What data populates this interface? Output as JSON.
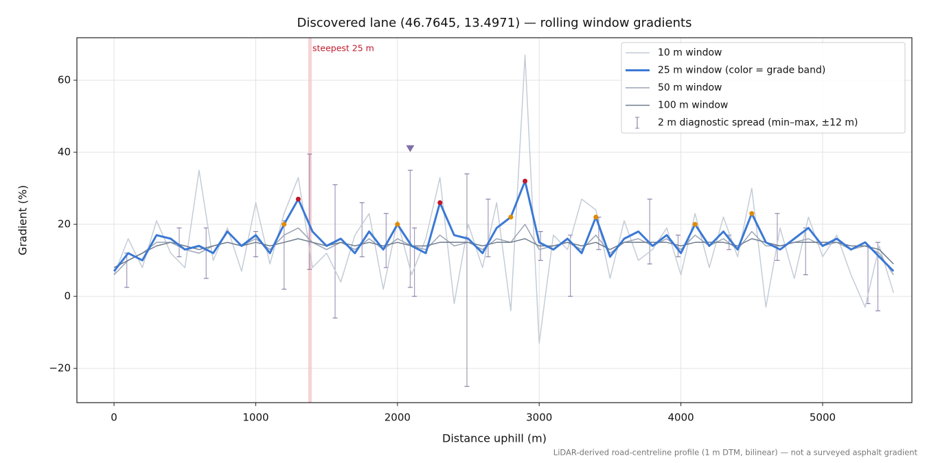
{
  "chart_data": {
    "type": "line",
    "title": "Discovered lane (46.7645, 13.4971) — rolling window gradients",
    "x_label": "Distance uphill (m)",
    "y_label": "Gradient (%)",
    "footnote": "LiDAR-derived road-centreline profile (1 m DTM, bilinear) — not a surveyed asphalt gradient",
    "xlim": [
      -262,
      5630
    ],
    "ylim": [
      -29.5,
      71.8
    ],
    "xticks": [
      0,
      1000,
      2000,
      3000,
      4000,
      5000
    ],
    "yticks": [
      {
        "value": -20,
        "label": "−20"
      },
      0,
      20,
      40,
      60
    ],
    "grid": true,
    "legend": "upper right",
    "x": [
      0,
      100,
      200,
      300,
      400,
      500,
      600,
      700,
      800,
      900,
      1000,
      1100,
      1200,
      1300,
      1400,
      1500,
      1600,
      1700,
      1800,
      1900,
      2000,
      2100,
      2200,
      2300,
      2400,
      2500,
      2600,
      2700,
      2800,
      2900,
      3000,
      3100,
      3200,
      3300,
      3400,
      3500,
      3600,
      3700,
      3800,
      3900,
      4000,
      4100,
      4200,
      4300,
      4400,
      4500,
      4600,
      4700,
      4800,
      4900,
      5000,
      5100,
      5200,
      5300,
      5400,
      5500
    ],
    "series": [
      {
        "name": "10 m window",
        "color": "#c4ccd6",
        "width": 1.5,
        "values": [
          6,
          16,
          8,
          21,
          12,
          8,
          35,
          10,
          19,
          7,
          26,
          9,
          23,
          33,
          8,
          12,
          4,
          17,
          23,
          2,
          21,
          6,
          16,
          33,
          -2,
          20,
          8,
          26,
          -4,
          67,
          -13,
          17,
          13,
          27,
          24,
          5,
          21,
          10,
          13,
          19,
          6,
          23,
          8,
          22,
          11,
          30,
          -3,
          19,
          5,
          22,
          11,
          17,
          6,
          -3,
          14,
          1
        ]
      },
      {
        "name": "25 m window (color = grade band)",
        "color": "#3a78d4",
        "width": 3,
        "values": [
          7,
          12,
          10,
          17,
          16,
          13,
          14,
          12,
          18,
          14,
          17,
          12,
          20,
          27,
          18,
          14,
          16,
          12,
          18,
          13,
          20,
          14,
          12,
          26,
          17,
          16,
          12,
          19,
          22,
          32,
          15,
          13,
          16,
          12,
          22,
          11,
          16,
          18,
          14,
          17,
          12,
          20,
          14,
          18,
          13,
          23,
          15,
          13,
          16,
          19,
          14,
          16,
          13,
          15,
          11,
          7
        ]
      },
      {
        "name": "50 m window",
        "color": "#9aa4b4",
        "width": 1.5,
        "values": [
          6,
          10,
          12,
          15,
          15,
          13,
          12,
          14,
          15,
          14,
          16,
          13,
          17,
          19,
          15,
          13,
          15,
          13,
          16,
          13,
          16,
          14,
          13,
          17,
          14,
          15,
          13,
          16,
          15,
          20,
          13,
          14,
          15,
          13,
          17,
          12,
          15,
          16,
          14,
          16,
          13,
          17,
          14,
          16,
          13,
          18,
          14,
          14,
          15,
          16,
          14,
          15,
          13,
          14,
          12,
          6
        ]
      },
      {
        "name": "100 m window",
        "color": "#6e7b8c",
        "width": 1.5,
        "values": [
          8,
          10,
          12,
          14,
          15,
          14,
          13,
          14,
          15,
          14,
          15,
          14,
          15,
          16,
          15,
          14,
          15,
          14,
          15,
          14,
          15,
          14,
          14,
          15,
          15,
          15,
          14,
          15,
          15,
          16,
          14,
          14,
          15,
          14,
          15,
          13,
          15,
          15,
          15,
          15,
          14,
          15,
          15,
          15,
          14,
          16,
          15,
          14,
          15,
          15,
          15,
          15,
          14,
          14,
          13,
          9
        ]
      }
    ],
    "grade_bands": [
      {
        "from": 20,
        "color": "#e08a00"
      },
      {
        "from": 25,
        "color": "#c0182a"
      }
    ],
    "spread": {
      "name": "2 m diagnostic spread (min–max, ±12 m)",
      "color": "#8a80aa",
      "x": [
        90,
        460,
        650,
        1000,
        1200,
        1380,
        1560,
        1750,
        1920,
        2090,
        2120,
        2490,
        2640,
        3010,
        3220,
        3420,
        3780,
        3980,
        4340,
        4680,
        4880,
        5320,
        5390
      ],
      "low": [
        2.5,
        11,
        5,
        11,
        2,
        7.5,
        -6,
        11,
        8,
        2.5,
        0,
        -25,
        11,
        10,
        0,
        13,
        9,
        11,
        13,
        10,
        6,
        -2,
        -4
      ],
      "high": [
        12,
        19,
        19,
        18,
        21,
        39.5,
        31,
        26,
        23,
        35,
        19,
        34,
        27,
        18,
        17,
        22,
        27,
        17,
        17,
        23,
        19,
        14,
        15
      ]
    },
    "peak_marker": {
      "x": 2090,
      "y": 41,
      "color": "#8070a8"
    },
    "highlight": {
      "x": [
        1370,
        1395
      ],
      "label": "steepest 25 m",
      "color": "#f3c4c8"
    }
  }
}
